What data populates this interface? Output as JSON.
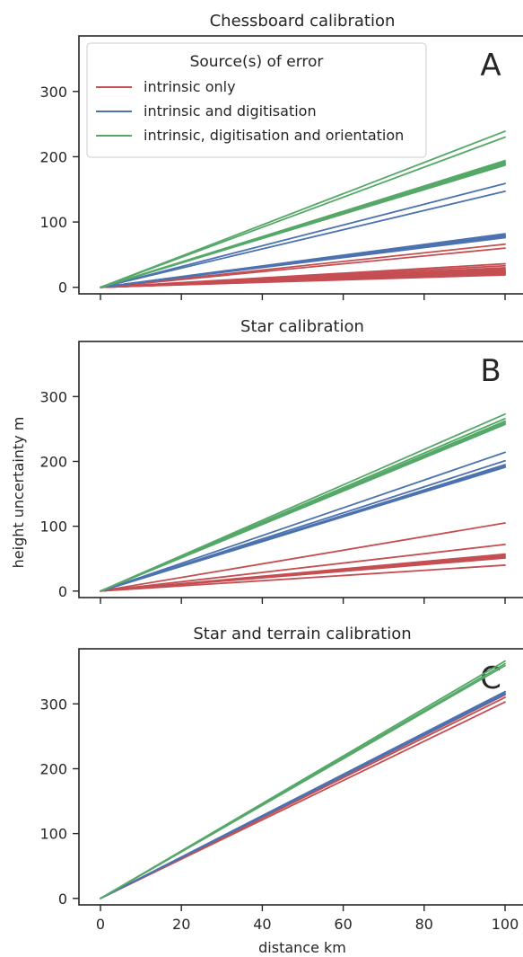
{
  "figure": {
    "ylabel": "height uncertainty m",
    "xlabel": "distance km"
  },
  "legend": {
    "title": "Source(s) of error",
    "entries": [
      {
        "label": "intrinsic only",
        "color": "#c44e52"
      },
      {
        "label": "intrinsic and digitisation",
        "color": "#4c72b0"
      },
      {
        "label": "intrinsic, digitisation and orientation",
        "color": "#55a868"
      }
    ]
  },
  "chart_data": [
    {
      "type": "line",
      "title": "Chessboard calibration",
      "panel_label": "A",
      "xlim": [
        0,
        100
      ],
      "ylim": [
        -10,
        385
      ],
      "xticks": [
        0,
        20,
        40,
        60,
        80,
        100
      ],
      "xticklabels_shown": false,
      "yticks": [
        0,
        100,
        200,
        300
      ],
      "legend": "top-left",
      "grid": false,
      "series": [
        {
          "name": "intrinsic only",
          "color": "#c44e52",
          "x": [
            0,
            100
          ],
          "end_values": [
            66,
            60,
            36,
            33,
            30,
            28,
            26,
            25,
            24,
            23,
            22,
            21,
            20,
            19
          ]
        },
        {
          "name": "intrinsic and digitisation",
          "color": "#4c72b0",
          "x": [
            0,
            100
          ],
          "end_values": [
            159,
            147,
            82,
            80,
            79,
            78,
            77,
            76
          ]
        },
        {
          "name": "intrinsic, digitisation and orientation",
          "color": "#55a868",
          "x": [
            0,
            100
          ],
          "end_values": [
            239,
            230,
            194,
            192,
            190,
            189,
            188,
            187
          ]
        }
      ]
    },
    {
      "type": "line",
      "title": "Star calibration",
      "panel_label": "B",
      "xlim": [
        0,
        100
      ],
      "ylim": [
        -10,
        385
      ],
      "xticks": [
        0,
        20,
        40,
        60,
        80,
        100
      ],
      "xticklabels_shown": false,
      "yticks": [
        0,
        100,
        200,
        300
      ],
      "grid": false,
      "series": [
        {
          "name": "intrinsic only",
          "color": "#c44e52",
          "x": [
            0,
            100
          ],
          "end_values": [
            105,
            72,
            57,
            55,
            53,
            51,
            40
          ]
        },
        {
          "name": "intrinsic and digitisation",
          "color": "#4c72b0",
          "x": [
            0,
            100
          ],
          "end_values": [
            214,
            201,
            195,
            193,
            192,
            191
          ]
        },
        {
          "name": "intrinsic, digitisation and orientation",
          "color": "#55a868",
          "x": [
            0,
            100
          ],
          "end_values": [
            273,
            266,
            262,
            260,
            258,
            257
          ]
        }
      ]
    },
    {
      "type": "line",
      "title": "Star and terrain calibration",
      "panel_label": "C",
      "xlim": [
        0,
        100
      ],
      "ylim": [
        -10,
        385
      ],
      "xticks": [
        0,
        20,
        40,
        60,
        80,
        100
      ],
      "xticklabels_shown": true,
      "yticks": [
        0,
        100,
        200,
        300
      ],
      "grid": false,
      "series": [
        {
          "name": "intrinsic only",
          "color": "#c44e52",
          "x": [
            0,
            100
          ],
          "end_values": [
            314,
            310,
            303
          ]
        },
        {
          "name": "intrinsic and digitisation",
          "color": "#4c72b0",
          "x": [
            0,
            100
          ],
          "end_values": [
            319,
            317,
            315
          ]
        },
        {
          "name": "intrinsic, digitisation and orientation",
          "color": "#55a868",
          "x": [
            0,
            100
          ],
          "end_values": [
            366,
            362,
            359
          ]
        }
      ]
    }
  ]
}
